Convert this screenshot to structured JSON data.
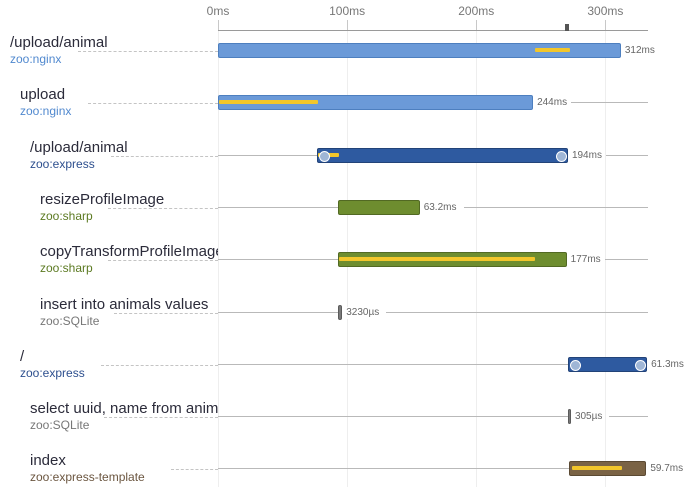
{
  "axis": {
    "ticks": [
      {
        "label": "0ms",
        "ms": 0
      },
      {
        "label": "100ms",
        "ms": 100
      },
      {
        "label": "200ms",
        "ms": 200
      },
      {
        "label": "300ms",
        "ms": 300
      }
    ],
    "max_ms": 333
  },
  "colors": {
    "nginx": "#6b9ad8",
    "nginx_text": "#5189cf",
    "express": "#2e5aa0",
    "express_text": "#2d4f8e",
    "sharp": "#6e8d2f",
    "sharp_text": "#5c7a22",
    "sqlite": "#7a7a7a",
    "sqlite_text": "#777777",
    "template": "#7a6345",
    "template_text": "#6b5640",
    "inner": "#f2c62b"
  },
  "spans": [
    {
      "name": "/upload/animal",
      "service": "zoo:nginx",
      "kind": "nginx",
      "depth": 0,
      "start_ms": 0,
      "duration_ms": 312,
      "duration_label": "312ms",
      "inner": [
        245,
        272
      ],
      "handles": false
    },
    {
      "name": "upload",
      "service": "zoo:nginx",
      "kind": "nginx",
      "depth": 1,
      "start_ms": 0,
      "duration_ms": 244,
      "duration_label": "244ms",
      "inner": [
        0,
        77
      ],
      "handles": false
    },
    {
      "name": "/upload/animal",
      "service": "zoo:express",
      "kind": "express",
      "depth": 2,
      "start_ms": 77,
      "duration_ms": 194,
      "duration_label": "194ms",
      "inner": [
        77,
        93
      ],
      "handles": true
    },
    {
      "name": "resizeProfileImage",
      "service": "zoo:sharp",
      "kind": "sharp",
      "depth": 3,
      "start_ms": 93,
      "duration_ms": 63.2,
      "duration_label": "63.2ms",
      "inner": null,
      "handles": false
    },
    {
      "name": "copyTransformProfileImage",
      "service": "zoo:sharp",
      "kind": "sharp",
      "depth": 3,
      "start_ms": 93,
      "duration_ms": 177,
      "duration_label": "177ms",
      "inner": [
        93,
        245
      ],
      "handles": false
    },
    {
      "name": "insert into animals values",
      "service": "zoo:SQLite",
      "kind": "sqlite",
      "depth": 3,
      "start_ms": 93,
      "duration_ms": 3.23,
      "duration_label": "3230µs",
      "inner": null,
      "handles": false
    },
    {
      "name": "/",
      "service": "zoo:express",
      "kind": "express",
      "depth": 1,
      "start_ms": 271,
      "duration_ms": 61.3,
      "duration_label": "61.3ms",
      "inner": null,
      "handles": true
    },
    {
      "name": "select uuid, name from animals",
      "service": "zoo:SQLite",
      "kind": "sqlite",
      "depth": 2,
      "start_ms": 271,
      "duration_ms": 0.305,
      "duration_label": "305µs",
      "inner": null,
      "handles": false
    },
    {
      "name": "index",
      "service": "zoo:express-template",
      "kind": "template",
      "depth": 2,
      "start_ms": 272,
      "duration_ms": 59.7,
      "duration_label": "59.7ms",
      "inner": [
        273,
        312
      ],
      "handles": false
    }
  ]
}
